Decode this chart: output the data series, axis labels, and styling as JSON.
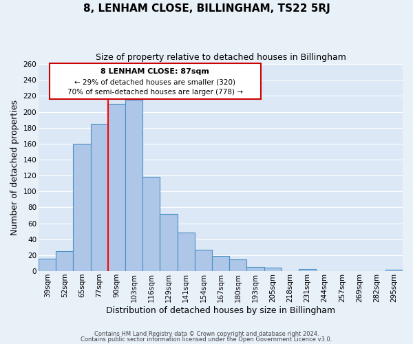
{
  "title": "8, LENHAM CLOSE, BILLINGHAM, TS22 5RJ",
  "subtitle": "Size of property relative to detached houses in Billingham",
  "xlabel": "Distribution of detached houses by size in Billingham",
  "ylabel": "Number of detached properties",
  "bar_labels": [
    "39sqm",
    "52sqm",
    "65sqm",
    "77sqm",
    "90sqm",
    "103sqm",
    "116sqm",
    "129sqm",
    "141sqm",
    "154sqm",
    "167sqm",
    "180sqm",
    "193sqm",
    "205sqm",
    "218sqm",
    "231sqm",
    "244sqm",
    "257sqm",
    "269sqm",
    "282sqm",
    "295sqm"
  ],
  "bar_values": [
    16,
    25,
    160,
    185,
    210,
    215,
    118,
    72,
    48,
    27,
    19,
    15,
    5,
    4,
    0,
    3,
    0,
    0,
    0,
    0,
    2
  ],
  "bar_color": "#aec6e8",
  "bar_edge_color": "#4a90c4",
  "background_color": "#e8f0f8",
  "plot_bg_color": "#dce8f5",
  "red_line_index": 4,
  "annotation_title": "8 LENHAM CLOSE: 87sqm",
  "annotation_line1": "← 29% of detached houses are smaller (320)",
  "annotation_line2": "70% of semi-detached houses are larger (778) →",
  "annotation_box_color": "#ffffff",
  "annotation_border_color": "#cc0000",
  "footer1": "Contains HM Land Registry data © Crown copyright and database right 2024.",
  "footer2": "Contains public sector information licensed under the Open Government Licence v3.0.",
  "ylim": [
    0,
    260
  ],
  "ytick_max": 260,
  "ytick_step": 20,
  "title_fontsize": 11,
  "subtitle_fontsize": 9,
  "axis_label_fontsize": 9,
  "tick_fontsize": 7.5
}
